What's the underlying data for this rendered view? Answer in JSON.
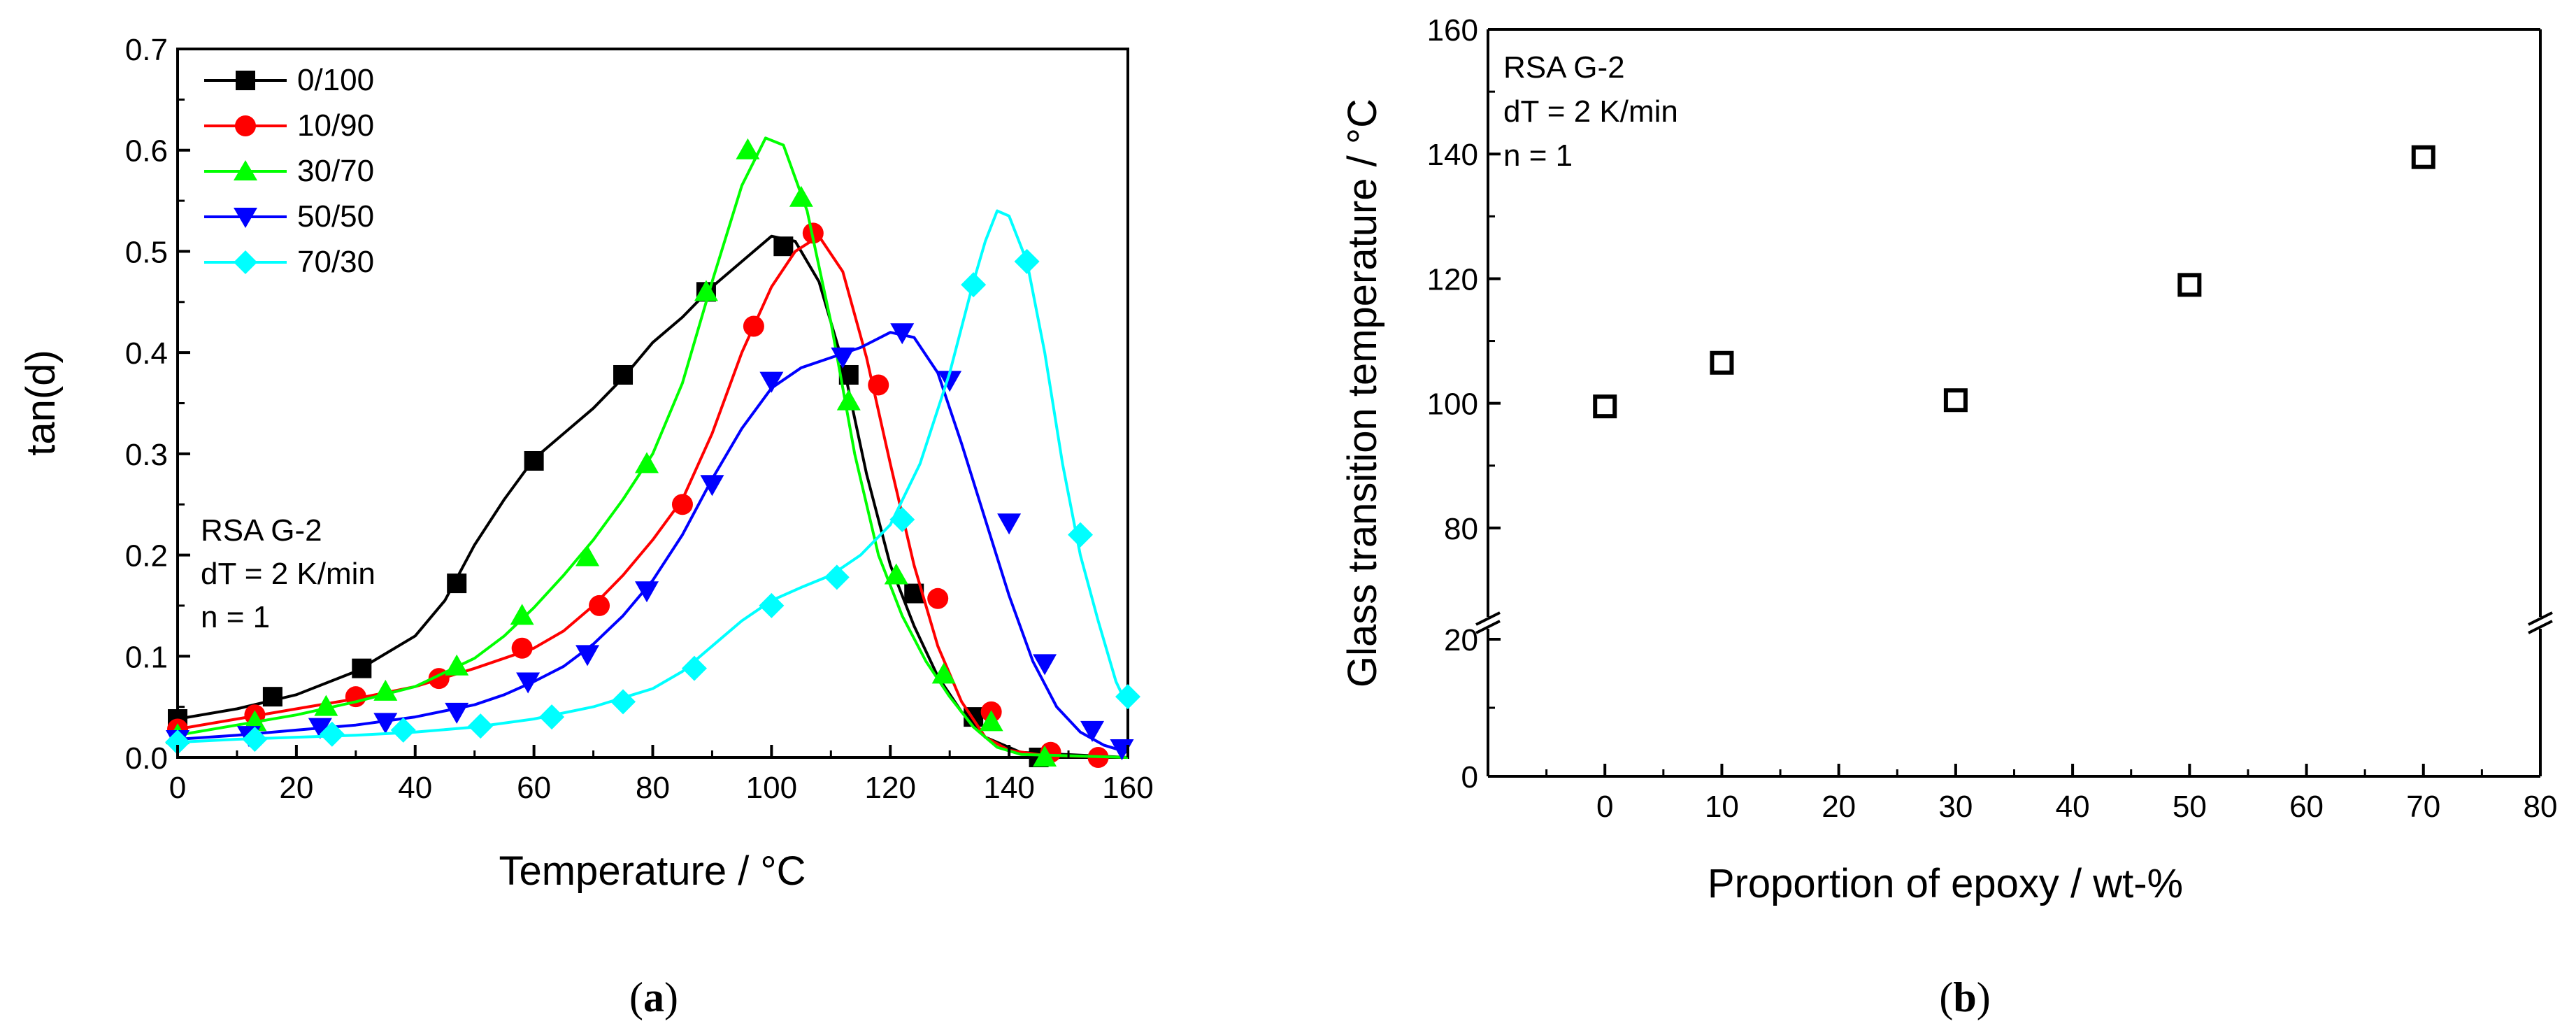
{
  "chart_data": [
    {
      "panel_label": "a",
      "type": "line",
      "xlabel": "Temperature / °C",
      "ylabel": "tan(d)",
      "xlim": [
        0,
        160
      ],
      "ylim": [
        0,
        0.7
      ],
      "xticks": [
        "0",
        "20",
        "40",
        "60",
        "80",
        "100",
        "120",
        "140",
        "160"
      ],
      "yticks": [
        "0.0",
        "0.1",
        "0.2",
        "0.3",
        "0.4",
        "0.5",
        "0.6",
        "0.7"
      ],
      "annotation": [
        "RSA G-2",
        "dT = 2 K/min",
        "n = 1"
      ],
      "legend_position": "top-left",
      "series": [
        {
          "name": "0/100",
          "color": "#000000",
          "marker": "square",
          "curve": [
            [
              0,
              0.038
            ],
            [
              10,
              0.048
            ],
            [
              20,
              0.062
            ],
            [
              30,
              0.085
            ],
            [
              40,
              0.12
            ],
            [
              45,
              0.155
            ],
            [
              50,
              0.21
            ],
            [
              55,
              0.255
            ],
            [
              60,
              0.295
            ],
            [
              65,
              0.32
            ],
            [
              70,
              0.345
            ],
            [
              75,
              0.375
            ],
            [
              80,
              0.41
            ],
            [
              85,
              0.435
            ],
            [
              90,
              0.465
            ],
            [
              95,
              0.49
            ],
            [
              100,
              0.515
            ],
            [
              104,
              0.51
            ],
            [
              108,
              0.47
            ],
            [
              112,
              0.39
            ],
            [
              116,
              0.28
            ],
            [
              120,
              0.19
            ],
            [
              124,
              0.13
            ],
            [
              128,
              0.08
            ],
            [
              132,
              0.045
            ],
            [
              136,
              0.02
            ],
            [
              142,
              0.005
            ],
            [
              160,
              0.0
            ]
          ],
          "markers": [
            [
              0,
              0.038
            ],
            [
              16,
              0.06
            ],
            [
              31,
              0.088
            ],
            [
              47,
              0.172
            ],
            [
              60,
              0.293
            ],
            [
              75,
              0.378
            ],
            [
              89,
              0.46
            ],
            [
              102,
              0.505
            ],
            [
              113,
              0.378
            ],
            [
              124,
              0.162
            ],
            [
              134,
              0.04
            ],
            [
              145,
              0.0
            ]
          ]
        },
        {
          "name": "10/90",
          "color": "#ff0000",
          "marker": "circle",
          "curve": [
            [
              0,
              0.028
            ],
            [
              10,
              0.038
            ],
            [
              20,
              0.048
            ],
            [
              30,
              0.058
            ],
            [
              40,
              0.07
            ],
            [
              50,
              0.088
            ],
            [
              55,
              0.098
            ],
            [
              60,
              0.108
            ],
            [
              65,
              0.125
            ],
            [
              70,
              0.15
            ],
            [
              75,
              0.18
            ],
            [
              80,
              0.215
            ],
            [
              85,
              0.255
            ],
            [
              90,
              0.32
            ],
            [
              95,
              0.4
            ],
            [
              100,
              0.465
            ],
            [
              104,
              0.5
            ],
            [
              108,
              0.515
            ],
            [
              112,
              0.48
            ],
            [
              116,
              0.395
            ],
            [
              120,
              0.29
            ],
            [
              124,
              0.19
            ],
            [
              128,
              0.11
            ],
            [
              132,
              0.055
            ],
            [
              136,
              0.02
            ],
            [
              140,
              0.007
            ],
            [
              146,
              0.002
            ],
            [
              160,
              0.0
            ]
          ],
          "markers": [
            [
              0,
              0.028
            ],
            [
              13,
              0.042
            ],
            [
              30,
              0.06
            ],
            [
              44,
              0.078
            ],
            [
              58,
              0.108
            ],
            [
              71,
              0.15
            ],
            [
              85,
              0.25
            ],
            [
              97,
              0.426
            ],
            [
              107,
              0.518
            ],
            [
              118,
              0.368
            ],
            [
              128,
              0.157
            ],
            [
              137,
              0.045
            ],
            [
              147,
              0.005
            ],
            [
              155,
              0.0
            ]
          ]
        },
        {
          "name": "30/70",
          "color": "#00ff00",
          "marker": "triangle-up",
          "curve": [
            [
              0,
              0.022
            ],
            [
              10,
              0.032
            ],
            [
              20,
              0.042
            ],
            [
              30,
              0.055
            ],
            [
              40,
              0.07
            ],
            [
              50,
              0.098
            ],
            [
              55,
              0.12
            ],
            [
              60,
              0.148
            ],
            [
              65,
              0.18
            ],
            [
              70,
              0.215
            ],
            [
              75,
              0.255
            ],
            [
              80,
              0.3
            ],
            [
              85,
              0.37
            ],
            [
              90,
              0.47
            ],
            [
              95,
              0.565
            ],
            [
              99,
              0.612
            ],
            [
              102,
              0.605
            ],
            [
              106,
              0.54
            ],
            [
              110,
              0.43
            ],
            [
              114,
              0.3
            ],
            [
              118,
              0.2
            ],
            [
              122,
              0.14
            ],
            [
              126,
              0.095
            ],
            [
              130,
              0.06
            ],
            [
              134,
              0.03
            ],
            [
              138,
              0.01
            ],
            [
              142,
              0.003
            ],
            [
              160,
              0.0
            ]
          ],
          "markers": [
            [
              0,
              0.022
            ],
            [
              13,
              0.035
            ],
            [
              25,
              0.05
            ],
            [
              35,
              0.065
            ],
            [
              47,
              0.09
            ],
            [
              58,
              0.14
            ],
            [
              69,
              0.198
            ],
            [
              79,
              0.29
            ],
            [
              89,
              0.46
            ],
            [
              96,
              0.6
            ],
            [
              105,
              0.553
            ],
            [
              113,
              0.352
            ],
            [
              121,
              0.18
            ],
            [
              129,
              0.082
            ],
            [
              137,
              0.035
            ],
            [
              146,
              0.0
            ]
          ]
        },
        {
          "name": "50/50",
          "color": "#0000ff",
          "marker": "triangle-down",
          "curve": [
            [
              0,
              0.018
            ],
            [
              10,
              0.022
            ],
            [
              20,
              0.027
            ],
            [
              30,
              0.032
            ],
            [
              40,
              0.04
            ],
            [
              50,
              0.052
            ],
            [
              55,
              0.062
            ],
            [
              60,
              0.075
            ],
            [
              65,
              0.09
            ],
            [
              70,
              0.112
            ],
            [
              75,
              0.14
            ],
            [
              80,
              0.175
            ],
            [
              85,
              0.22
            ],
            [
              90,
              0.275
            ],
            [
              95,
              0.325
            ],
            [
              100,
              0.365
            ],
            [
              105,
              0.385
            ],
            [
              110,
              0.395
            ],
            [
              115,
              0.405
            ],
            [
              120,
              0.42
            ],
            [
              124,
              0.415
            ],
            [
              128,
              0.38
            ],
            [
              132,
              0.31
            ],
            [
              136,
              0.235
            ],
            [
              140,
              0.16
            ],
            [
              144,
              0.095
            ],
            [
              148,
              0.05
            ],
            [
              152,
              0.025
            ],
            [
              156,
              0.012
            ],
            [
              160,
              0.005
            ]
          ],
          "markers": [
            [
              0,
              0.018
            ],
            [
              12,
              0.022
            ],
            [
              24,
              0.03
            ],
            [
              35,
              0.035
            ],
            [
              47,
              0.045
            ],
            [
              59,
              0.075
            ],
            [
              69,
              0.102
            ],
            [
              79,
              0.165
            ],
            [
              90,
              0.27
            ],
            [
              100,
              0.372
            ],
            [
              112,
              0.396
            ],
            [
              122,
              0.42
            ],
            [
              130,
              0.373
            ],
            [
              140,
              0.232
            ],
            [
              146,
              0.093
            ],
            [
              154,
              0.027
            ],
            [
              159,
              0.009
            ]
          ]
        },
        {
          "name": "70/30",
          "color": "#00ffff",
          "marker": "diamond",
          "curve": [
            [
              0,
              0.015
            ],
            [
              10,
              0.018
            ],
            [
              20,
              0.02
            ],
            [
              30,
              0.022
            ],
            [
              40,
              0.025
            ],
            [
              50,
              0.03
            ],
            [
              60,
              0.038
            ],
            [
              70,
              0.05
            ],
            [
              80,
              0.068
            ],
            [
              85,
              0.085
            ],
            [
              90,
              0.11
            ],
            [
              95,
              0.135
            ],
            [
              100,
              0.155
            ],
            [
              105,
              0.168
            ],
            [
              110,
              0.18
            ],
            [
              115,
              0.2
            ],
            [
              120,
              0.23
            ],
            [
              125,
              0.29
            ],
            [
              130,
              0.38
            ],
            [
              134,
              0.47
            ],
            [
              136,
              0.51
            ],
            [
              138,
              0.54
            ],
            [
              140,
              0.535
            ],
            [
              143,
              0.49
            ],
            [
              146,
              0.4
            ],
            [
              149,
              0.29
            ],
            [
              152,
              0.2
            ],
            [
              155,
              0.135
            ],
            [
              158,
              0.075
            ],
            [
              160,
              0.05
            ]
          ],
          "markers": [
            [
              0,
              0.015
            ],
            [
              13,
              0.018
            ],
            [
              26,
              0.023
            ],
            [
              38,
              0.027
            ],
            [
              51,
              0.031
            ],
            [
              63,
              0.04
            ],
            [
              75,
              0.055
            ],
            [
              87,
              0.088
            ],
            [
              100,
              0.15
            ],
            [
              111,
              0.178
            ],
            [
              122,
              0.235
            ],
            [
              134,
              0.467
            ],
            [
              143,
              0.49
            ],
            [
              152,
              0.22
            ],
            [
              160,
              0.06
            ]
          ]
        }
      ]
    },
    {
      "panel_label": "b",
      "type": "scatter",
      "xlabel": "Proportion of epoxy / wt-%",
      "ylabel": "Glass transition temperature / °C",
      "xlim": [
        -10,
        80
      ],
      "ylim": [
        0,
        160
      ],
      "axis_break": {
        "between": [
          20,
          70
        ]
      },
      "xticks": [
        "0",
        "10",
        "20",
        "30",
        "40",
        "50",
        "60",
        "70",
        "80"
      ],
      "yticks": [
        "0",
        "20",
        "80",
        "100",
        "120",
        "140",
        "160"
      ],
      "annotation": [
        "RSA G-2",
        "dT = 2 K/min",
        "n = 1"
      ],
      "marker": "open-square",
      "x": [
        0,
        10,
        30,
        50,
        70
      ],
      "y": [
        99.5,
        106.5,
        100.5,
        119,
        139.5
      ]
    }
  ]
}
